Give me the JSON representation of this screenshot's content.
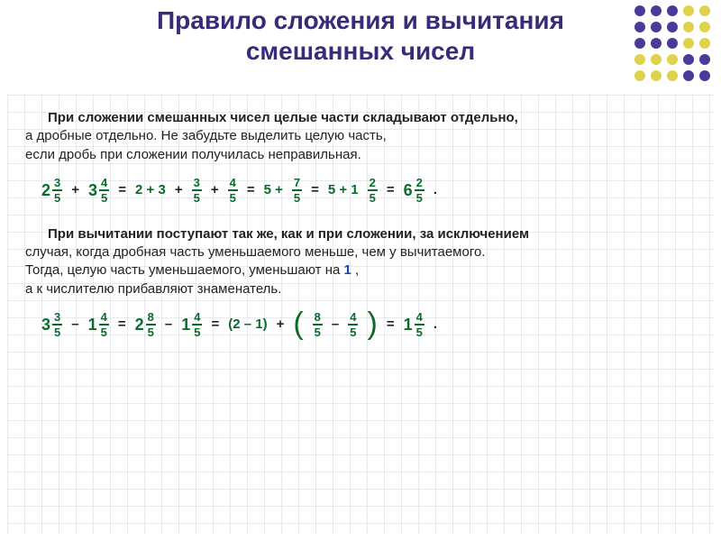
{
  "title_color": "#392b7a",
  "title_fontsize": 28,
  "title_line1": "Правило сложения и вычитания",
  "title_line2": "смешанных чисел",
  "decor_dots": {
    "colors": [
      "#4b3a9a",
      "#4b3a9a",
      "#4b3a9a",
      "#e0d24a",
      "#e0d24a",
      "#4b3a9a",
      "#4b3a9a",
      "#4b3a9a",
      "#e0d24a",
      "#e0d24a",
      "#4b3a9a",
      "#4b3a9a",
      "#4b3a9a",
      "#e0d24a",
      "#e0d24a",
      "#e0d24a",
      "#e0d24a",
      "#e0d24a",
      "#4b3a9a",
      "#4b3a9a",
      "#e0d24a",
      "#e0d24a",
      "#e0d24a",
      "#4b3a9a",
      "#4b3a9a"
    ]
  },
  "para1_bold": "При сложении смешанных чисел целые части складывают отдельно,",
  "para1_l2": "а дробные отдельно. Не забудьте выделить целую часть,",
  "para1_l3": "если дробь при сложении получилась неправильная.",
  "eq1": {
    "m1_w": "2",
    "m1_n": "3",
    "m1_d": "5",
    "plus": "+",
    "m2_w": "3",
    "m2_n": "4",
    "m2_d": "5",
    "eq": "=",
    "a1": "2 + 3",
    "plus2": "+",
    "f1_n": "3",
    "f1_d": "5",
    "plus3": "+",
    "f2_n": "4",
    "f2_d": "5",
    "a2": "5 +",
    "f3_n": "7",
    "f3_d": "5",
    "a3": "5 + 1",
    "f4_n": "2",
    "f4_d": "5",
    "res_w": "6",
    "res_n": "2",
    "res_d": "5",
    "dot": "."
  },
  "para2_bold": "При вычитании поступают так же, как и при сложении, за исключением",
  "para2_l2": "случая, когда дробная часть уменьшаемого меньше, чем у вычитаемого.",
  "para2_l3a": "Тогда, целую часть уменьшаемого, уменьшают на ",
  "para2_blue": "1",
  "para2_l3b": " ,",
  "para2_l4": "а к числителю прибавляют знаменатель.",
  "eq2": {
    "m1_w": "3",
    "m1_n": "3",
    "m1_d": "5",
    "minus": "–",
    "m2_w": "1",
    "m2_n": "4",
    "m2_d": "5",
    "eq": "=",
    "m3_w": "2",
    "m3_n": "8",
    "m3_d": "5",
    "m4_w": "1",
    "m4_n": "4",
    "m4_d": "5",
    "b1": "(2 – 1)",
    "plus": "+",
    "lp": "(",
    "rp": ")",
    "f1_n": "8",
    "f1_d": "5",
    "f2_n": "4",
    "f2_d": "5",
    "res_w": "1",
    "res_n": "4",
    "res_d": "5",
    "dot": "."
  },
  "math_color": "#0a6b2b",
  "text_color": "#222222",
  "blue": "#1a3fcf"
}
